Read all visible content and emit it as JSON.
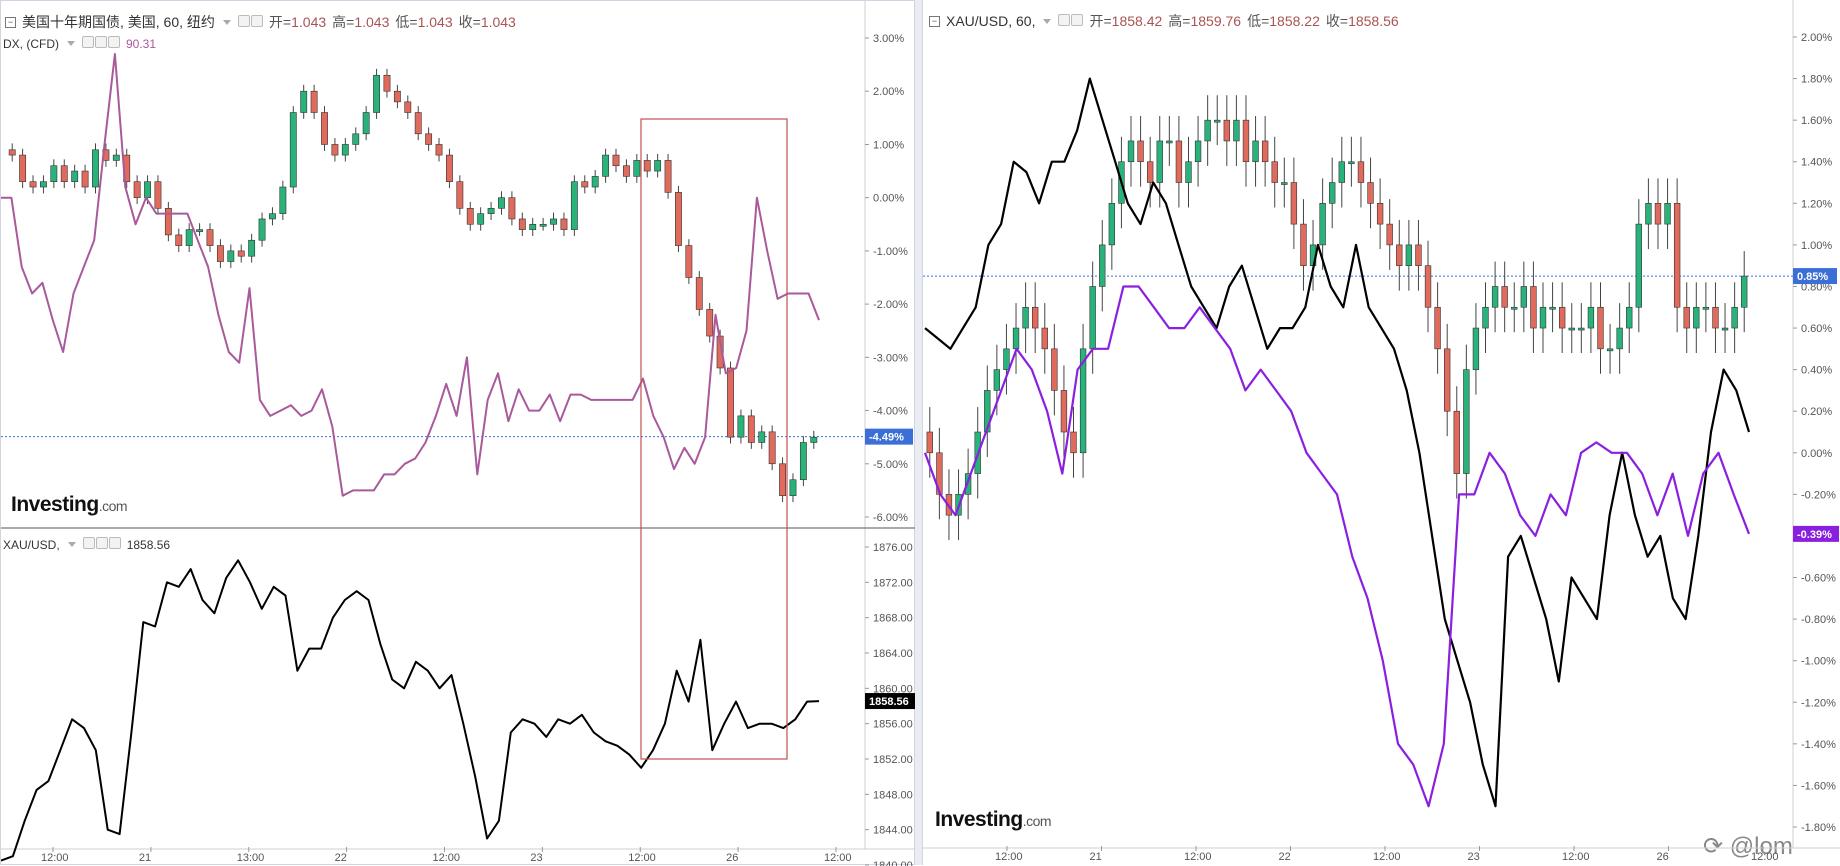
{
  "left_top": {
    "legend": {
      "symbol": "美国十年期国债, 美国, 60, 纽约",
      "open_label": "开=",
      "open": "1.043",
      "high_label": "高=",
      "high": "1.043",
      "low_label": "低=",
      "low": "1.043",
      "close_label": "收=",
      "close": "1.043"
    },
    "overlay_legend": {
      "symbol": "DX, (CFD)",
      "value": "90.31"
    },
    "price_badge": "-4.49%",
    "axis_ticks": [
      "3.00%",
      "2.00%",
      "1.00%",
      "0.00%",
      "-1.00%",
      "-2.00%",
      "-3.00%",
      "-4.00%",
      "-5.00%",
      "-6.00%"
    ]
  },
  "left_bottom": {
    "legend": {
      "symbol": "XAU/USD,",
      "value": "1858.56"
    },
    "price_badge": "1858.56",
    "axis_ticks": [
      "1876.00",
      "1872.00",
      "1868.00",
      "1864.00",
      "1860.00",
      "1856.00",
      "1852.00",
      "1848.00",
      "1844.00",
      "1840.00"
    ]
  },
  "left_time_axis": [
    "12:00",
    "21",
    "13:00",
    "22",
    "12:00",
    "23",
    "12:00",
    "26",
    "12:00"
  ],
  "right": {
    "legend": {
      "symbol": "XAU/USD, 60,",
      "open_label": "开=",
      "open": "1858.42",
      "high_label": "高=",
      "high": "1859.76",
      "low_label": "低=",
      "low": "1858.22",
      "close_label": "收=",
      "close": "1858.56"
    },
    "price_badge_blue": "0.85%",
    "price_badge_purple": "-0.39%",
    "axis_ticks": [
      "2.00%",
      "1.80%",
      "1.60%",
      "1.40%",
      "1.20%",
      "1.00%",
      "0.80%",
      "0.60%",
      "0.40%",
      "0.20%",
      "0.00%",
      "-0.20%",
      "-0.40%",
      "-0.60%",
      "-0.80%",
      "-1.00%",
      "-1.20%",
      "-1.40%",
      "-1.60%",
      "-1.80%"
    ],
    "time_axis": [
      "12:00",
      "21",
      "12:00",
      "22",
      "12:00",
      "23",
      "12:00",
      "26",
      "12:00"
    ]
  },
  "logo": {
    "brand": "Investing",
    "domain": ".com"
  },
  "watermark": "@lom",
  "colors": {
    "up": "#2ab27b",
    "down": "#e06a5c",
    "dx_line": "#a85a9a",
    "gold_line": "#000000",
    "purple_line": "#8a1fe0",
    "badge_blue": "#3b6fd6",
    "badge_purple": "#8a1fe0"
  },
  "chart_data": [
    {
      "type": "candlestick",
      "series": [
        {
          "name": "美国十年期国债, 美国, 60, 纽约",
          "unit": "% change",
          "close": [
            0.8,
            0.3,
            0.2,
            0.3,
            0.6,
            0.3,
            0.5,
            0.2,
            0.9,
            0.7,
            0.8,
            0.3,
            0.0,
            0.3,
            -0.2,
            -0.7,
            -0.9,
            -0.6,
            -0.6,
            -0.9,
            -1.2,
            -1.0,
            -1.1,
            -0.8,
            -0.4,
            -0.3,
            0.2,
            1.6,
            2.0,
            1.6,
            1.0,
            0.8,
            1.0,
            1.2,
            1.6,
            2.3,
            2.0,
            1.8,
            1.6,
            1.2,
            1.0,
            0.8,
            0.3,
            -0.2,
            -0.5,
            -0.3,
            -0.2,
            0.0,
            -0.4,
            -0.6,
            -0.5,
            -0.5,
            -0.4,
            -0.6,
            0.3,
            0.2,
            0.4,
            0.8,
            0.6,
            0.4,
            0.7,
            0.5,
            0.7,
            0.1,
            -0.9,
            -1.5,
            -2.1,
            -2.6,
            -3.2,
            -4.5,
            -4.1,
            -4.6,
            -4.4,
            -5.0,
            -5.6,
            -5.3,
            -4.6,
            -4.5
          ]
        }
      ]
    },
    {
      "type": "line",
      "series": [
        {
          "name": "DX, (CFD)",
          "unit": "% change",
          "values": [
            0.0,
            0.0,
            -1.3,
            -1.8,
            -1.6,
            -2.3,
            -2.9,
            -1.8,
            -1.3,
            -0.8,
            1.0,
            2.7,
            0.2,
            -0.5,
            0.0,
            -0.3,
            -0.3,
            -0.3,
            -0.3,
            -0.8,
            -1.3,
            -2.2,
            -2.9,
            -3.1,
            -1.7,
            -3.8,
            -4.1,
            -4.0,
            -3.9,
            -4.1,
            -4.0,
            -3.6,
            -4.3,
            -5.6,
            -5.5,
            -5.5,
            -5.5,
            -5.2,
            -5.2,
            -5.0,
            -4.9,
            -4.6,
            -4.1,
            -3.5,
            -4.1,
            -3.0,
            -5.2,
            -3.8,
            -3.3,
            -4.2,
            -3.6,
            -4.0,
            -4.0,
            -3.7,
            -4.2,
            -3.7,
            -3.7,
            -3.8,
            -3.8,
            -3.8,
            -3.8,
            -3.8,
            -3.4,
            -4.1,
            -4.5,
            -5.1,
            -4.7,
            -5.0,
            -4.5,
            -2.2,
            -3.3,
            -3.2,
            -2.5,
            0.0,
            -1.0,
            -1.9,
            -1.8,
            -1.8,
            -1.8,
            -2.3
          ]
        }
      ]
    },
    {
      "type": "line",
      "series": [
        {
          "name": "XAU/USD,",
          "unit": "USD",
          "values": [
            1840.5,
            1841.0,
            1845.0,
            1848.5,
            1849.5,
            1853.0,
            1856.5,
            1855.5,
            1853.0,
            1844.0,
            1843.5,
            1855.0,
            1867.5,
            1867.0,
            1872.0,
            1871.5,
            1873.5,
            1870.0,
            1868.5,
            1872.5,
            1874.5,
            1872.0,
            1869.0,
            1871.5,
            1870.5,
            1862.0,
            1864.5,
            1864.5,
            1868.0,
            1870.0,
            1871.0,
            1870.0,
            1865.0,
            1861.0,
            1860.0,
            1863.0,
            1862.0,
            1860.0,
            1861.5,
            1856.0,
            1850.0,
            1843.0,
            1845.0,
            1855.0,
            1856.5,
            1856.0,
            1854.5,
            1856.5,
            1856.0,
            1857.0,
            1855.0,
            1854.0,
            1853.5,
            1852.5,
            1851.0,
            1853.0,
            1856.0,
            1862.0,
            1858.5,
            1865.5,
            1853.0,
            1856.0,
            1858.5,
            1855.5,
            1856.0,
            1856.0,
            1855.5,
            1856.5,
            1858.5,
            1858.56
          ]
        }
      ]
    },
    {
      "type": "candlestick",
      "series": [
        {
          "name": "XAU/USD, 60,",
          "unit": "% change",
          "close": [
            0.0,
            -0.2,
            -0.3,
            -0.2,
            -0.1,
            0.1,
            0.3,
            0.4,
            0.5,
            0.6,
            0.7,
            0.6,
            0.5,
            0.3,
            0.1,
            0.0,
            0.5,
            0.8,
            1.0,
            1.2,
            1.4,
            1.5,
            1.4,
            1.3,
            1.5,
            1.5,
            1.3,
            1.4,
            1.5,
            1.6,
            1.6,
            1.5,
            1.6,
            1.4,
            1.5,
            1.4,
            1.3,
            1.3,
            1.1,
            0.9,
            1.0,
            1.2,
            1.3,
            1.4,
            1.4,
            1.3,
            1.2,
            1.1,
            1.0,
            0.9,
            1.0,
            0.9,
            0.7,
            0.5,
            0.2,
            -0.1,
            0.4,
            0.6,
            0.7,
            0.8,
            0.7,
            0.7,
            0.8,
            0.6,
            0.7,
            0.7,
            0.6,
            0.6,
            0.6,
            0.7,
            0.5,
            0.5,
            0.6,
            0.7,
            1.1,
            1.2,
            1.1,
            1.2,
            0.7,
            0.6,
            0.7,
            0.7,
            0.6,
            0.6,
            0.7,
            0.85
          ]
        },
        {
          "name": "gold (black line)",
          "unit": "% change",
          "values": [
            0.6,
            0.55,
            0.5,
            0.6,
            0.7,
            1.0,
            1.1,
            1.4,
            1.35,
            1.2,
            1.4,
            1.4,
            1.55,
            1.8,
            1.6,
            1.4,
            1.2,
            1.1,
            1.3,
            1.2,
            1.0,
            0.8,
            0.7,
            0.6,
            0.8,
            0.9,
            0.7,
            0.5,
            0.6,
            0.6,
            0.7,
            1.0,
            0.8,
            0.7,
            1.0,
            0.7,
            0.6,
            0.5,
            0.3,
            0.0,
            -0.4,
            -0.8,
            -1.0,
            -1.2,
            -1.5,
            -1.7,
            -0.5,
            -0.4,
            -0.6,
            -0.8,
            -1.1,
            -0.6,
            -0.7,
            -0.8,
            -0.3,
            0.0,
            -0.3,
            -0.5,
            -0.4,
            -0.7,
            -0.8,
            -0.4,
            0.1,
            0.4,
            0.3,
            0.1
          ]
        },
        {
          "name": "purple line",
          "unit": "% change",
          "values": [
            0.0,
            -0.2,
            -0.3,
            -0.1,
            0.1,
            0.3,
            0.5,
            0.4,
            0.2,
            -0.1,
            0.4,
            0.5,
            0.5,
            0.8,
            0.8,
            0.7,
            0.6,
            0.6,
            0.7,
            0.6,
            0.5,
            0.3,
            0.4,
            0.3,
            0.2,
            0.0,
            -0.1,
            -0.2,
            -0.5,
            -0.7,
            -1.0,
            -1.4,
            -1.5,
            -1.7,
            -1.4,
            -0.2,
            -0.2,
            0.0,
            -0.1,
            -0.3,
            -0.4,
            -0.2,
            -0.3,
            0.0,
            0.05,
            0.0,
            0.0,
            -0.1,
            -0.3,
            -0.1,
            -0.4,
            -0.1,
            0.0,
            -0.2,
            -0.39
          ]
        }
      ]
    }
  ]
}
